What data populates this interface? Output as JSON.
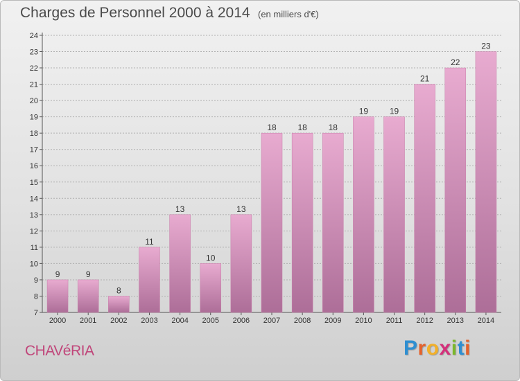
{
  "header": {
    "title": "Charges de Personnel 2000 à 2014",
    "subtitle": "(en milliers d'€)"
  },
  "footer": {
    "town": "CHAVéRIA",
    "logo_letters": [
      "P",
      "r",
      "o",
      "x",
      "i",
      "t",
      "i"
    ],
    "logo_colors": [
      "#2f8fd1",
      "#e5612a",
      "#f2b02a",
      "#d42f7a",
      "#7bb72a",
      "#2f8fd1",
      "#e5612a"
    ]
  },
  "colors": {
    "bar_top": "#e8abd0",
    "bar_bottom": "#ad6e98",
    "grid": "#b0b0b0",
    "axis": "#555555"
  },
  "chart_data": {
    "type": "bar",
    "title": "Charges de Personnel 2000 à 2014",
    "subtitle": "(en milliers d'€)",
    "xlabel": "",
    "ylabel": "",
    "categories": [
      "2000",
      "2001",
      "2002",
      "2003",
      "2004",
      "2005",
      "2006",
      "2007",
      "2008",
      "2009",
      "2010",
      "2011",
      "2012",
      "2013",
      "2014"
    ],
    "values": [
      9,
      9,
      8,
      11,
      13,
      10,
      13,
      18,
      18,
      18,
      19,
      19,
      21,
      22,
      23
    ],
    "ylim": [
      7,
      24
    ],
    "yticks": [
      "7",
      "8",
      "9",
      "10",
      "11",
      "12",
      "13",
      "14",
      "15",
      "16",
      "17",
      "18",
      "19",
      "20",
      "21",
      "22",
      "23",
      "24"
    ],
    "grid": true
  }
}
